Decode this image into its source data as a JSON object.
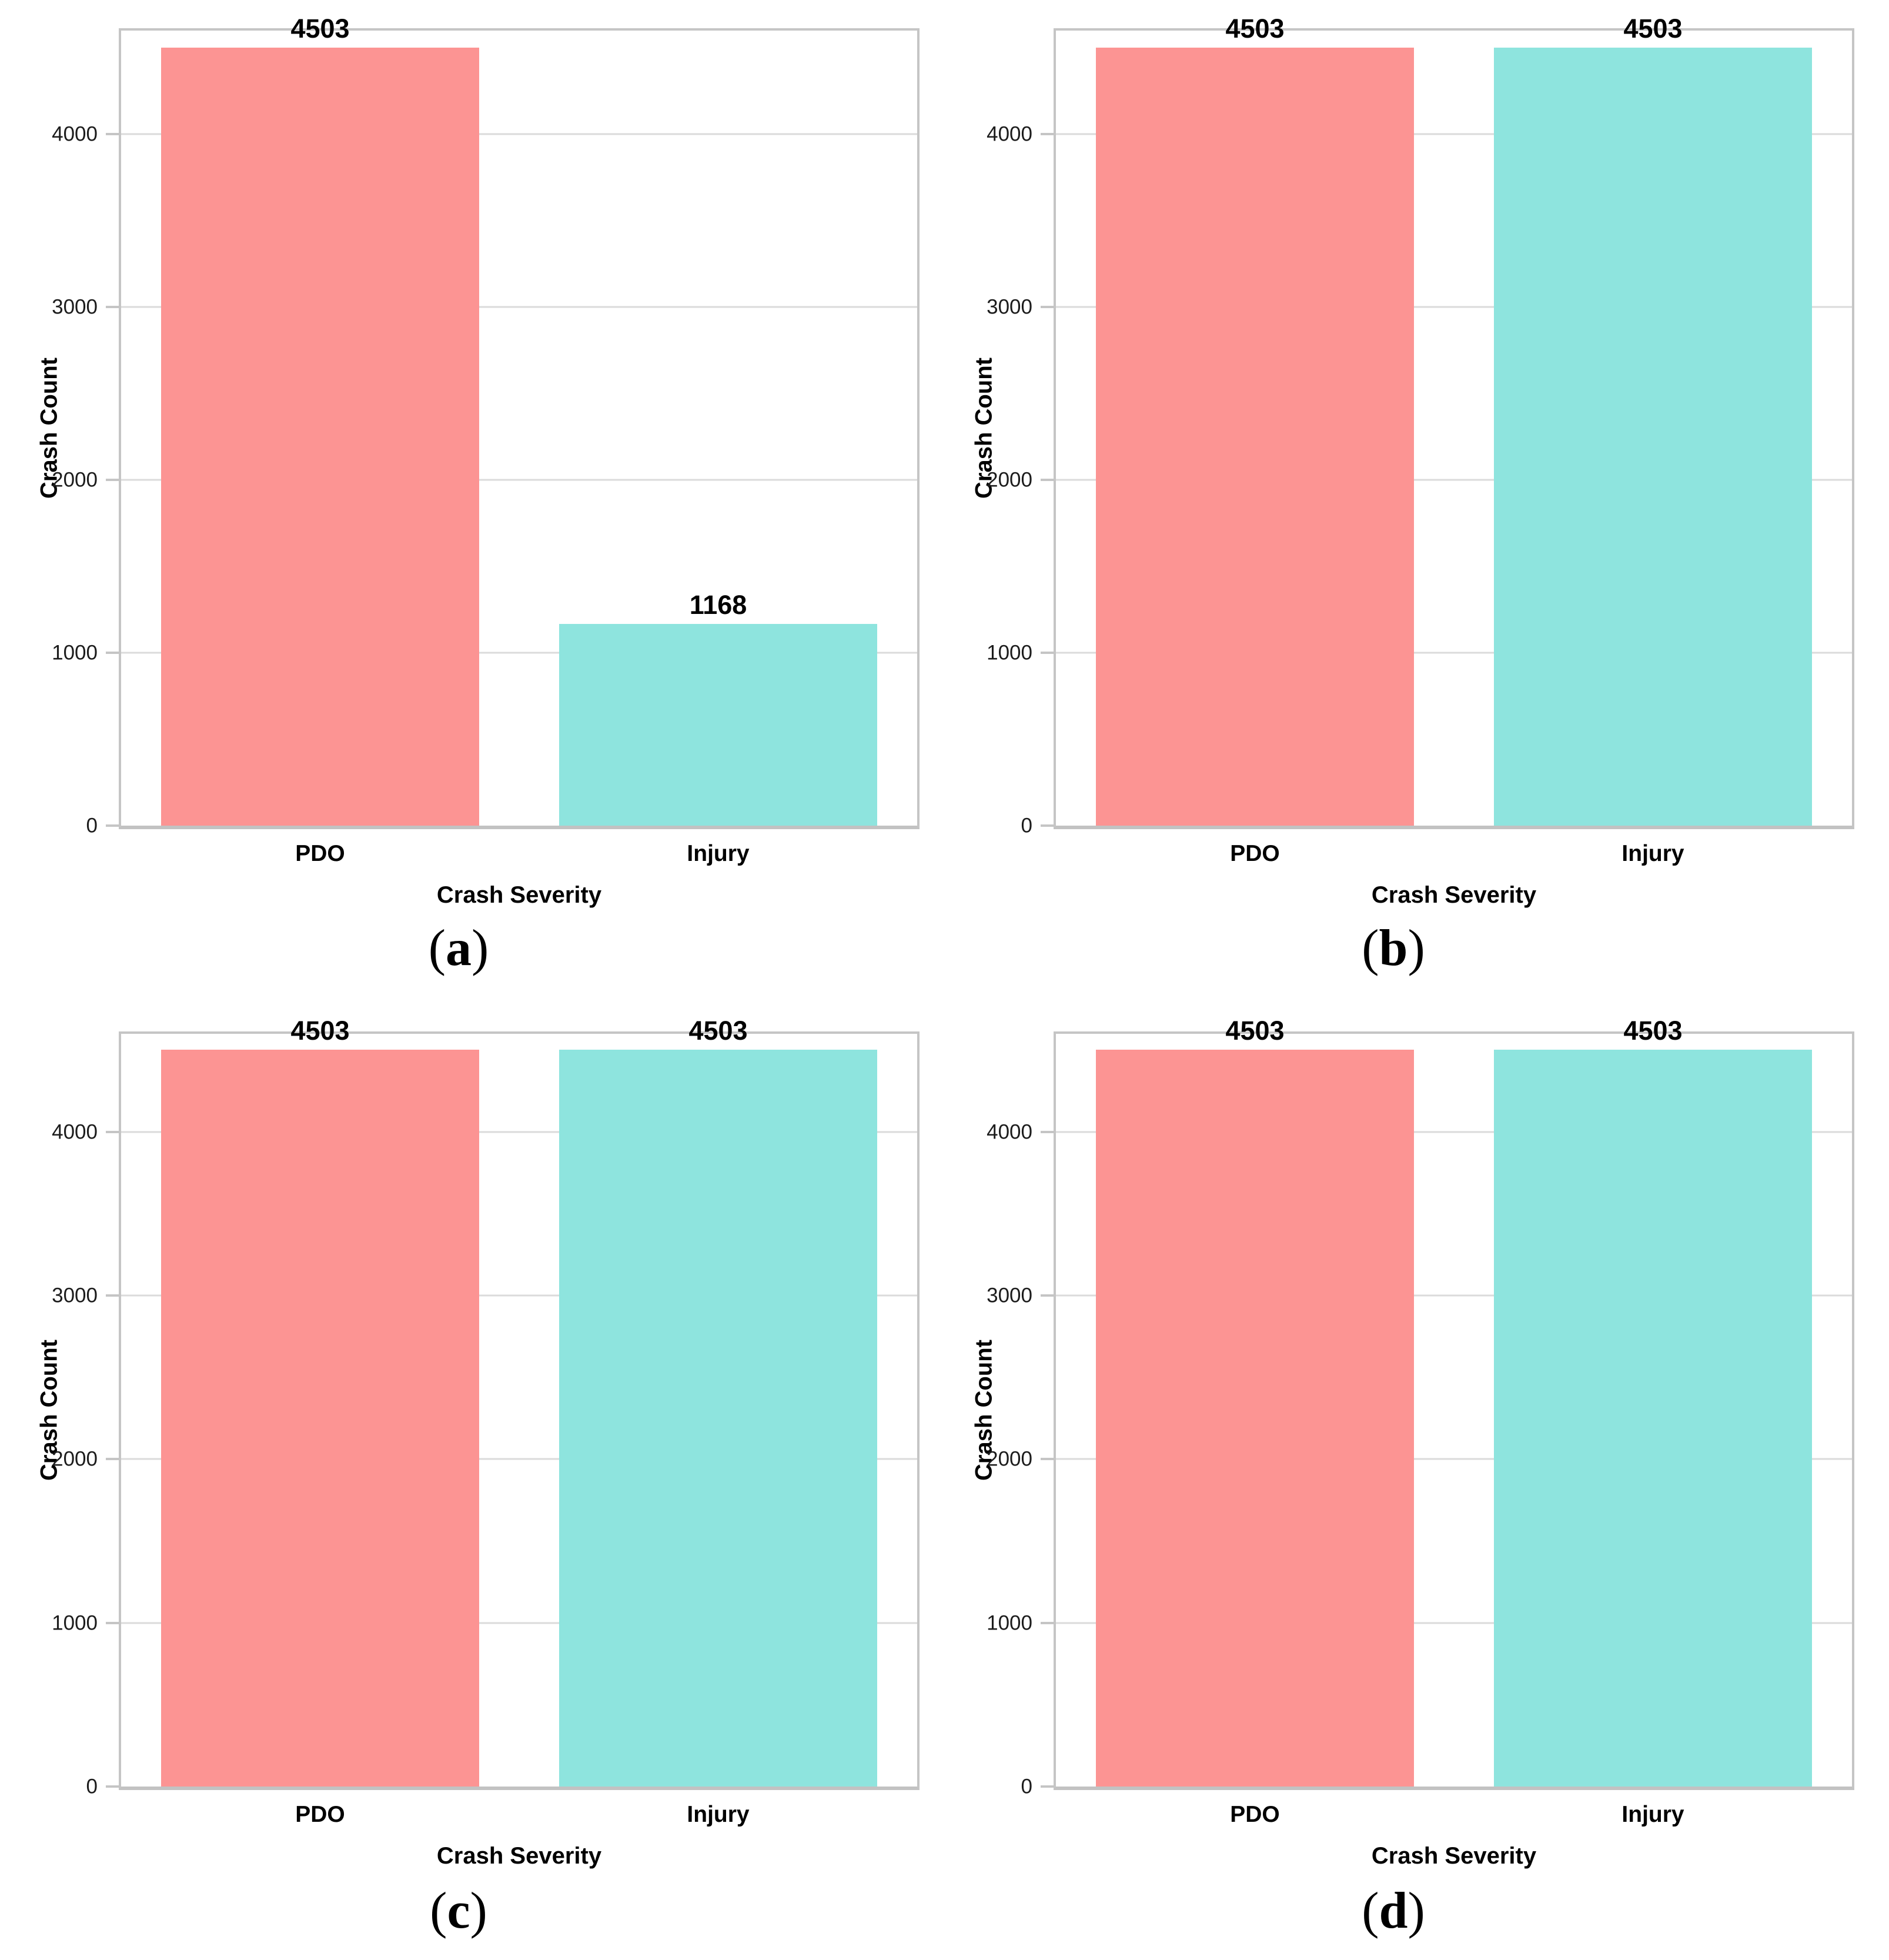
{
  "figure": {
    "ylabel": "Crash Count",
    "xlabel": "Crash Severity",
    "categories": [
      "PDO",
      "Injury"
    ],
    "yticks": [
      0,
      1000,
      2000,
      3000,
      4000
    ],
    "ymax": 4600,
    "colors": {
      "pdo": "#FC9493",
      "injury": "#8EE4DE"
    },
    "grid_color": "#dbdbdb",
    "axis_border_color": "#c5c5c5",
    "caption_open": "(",
    "caption_close": ")"
  },
  "chart_data": [
    {
      "type": "bar",
      "caption_letter": "a",
      "categories": [
        "PDO",
        "Injury"
      ],
      "values": [
        4503,
        1168
      ],
      "value_labels": [
        "4503",
        "1168"
      ],
      "series_colors": [
        "#FC9493",
        "#8EE4DE"
      ],
      "title": "",
      "xlabel": "Crash Severity",
      "ylabel": "Crash Count",
      "ylim": [
        0,
        4600
      ],
      "yticks": [
        0,
        1000,
        2000,
        3000,
        4000
      ],
      "grid": true,
      "legend": false
    },
    {
      "type": "bar",
      "caption_letter": "b",
      "categories": [
        "PDO",
        "Injury"
      ],
      "values": [
        4503,
        4503
      ],
      "value_labels": [
        "4503",
        "4503"
      ],
      "series_colors": [
        "#FC9493",
        "#8EE4DE"
      ],
      "title": "",
      "xlabel": "Crash Severity",
      "ylabel": "Crash Count",
      "ylim": [
        0,
        4600
      ],
      "yticks": [
        0,
        1000,
        2000,
        3000,
        4000
      ],
      "grid": true,
      "legend": false
    },
    {
      "type": "bar",
      "caption_letter": "c",
      "categories": [
        "PDO",
        "Injury"
      ],
      "values": [
        4503,
        4503
      ],
      "value_labels": [
        "4503",
        "4503"
      ],
      "series_colors": [
        "#FC9493",
        "#8EE4DE"
      ],
      "title": "",
      "xlabel": "Crash Severity",
      "ylabel": "Crash Count",
      "ylim": [
        0,
        4600
      ],
      "yticks": [
        0,
        1000,
        2000,
        3000,
        4000
      ],
      "grid": true,
      "legend": false
    },
    {
      "type": "bar",
      "caption_letter": "d",
      "categories": [
        "PDO",
        "Injury"
      ],
      "values": [
        4503,
        4503
      ],
      "value_labels": [
        "4503",
        "4503"
      ],
      "series_colors": [
        "#FC9493",
        "#8EE4DE"
      ],
      "title": "",
      "xlabel": "Crash Severity",
      "ylabel": "Crash Count",
      "ylim": [
        0,
        4600
      ],
      "yticks": [
        0,
        1000,
        2000,
        3000,
        4000
      ],
      "grid": true,
      "legend": false
    }
  ]
}
